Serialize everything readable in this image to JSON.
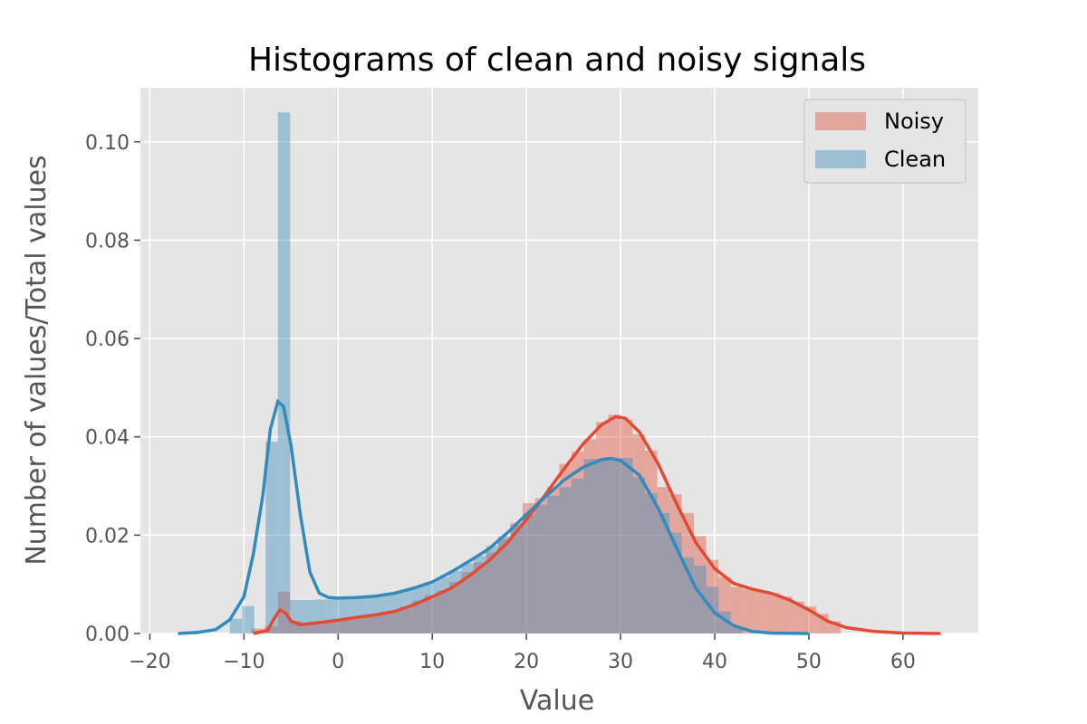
{
  "chart_data": {
    "type": "bar",
    "title": "Histograms of clean and noisy signals",
    "xlabel": "Value",
    "ylabel": "Number of values/Total values",
    "xlim": [
      -21,
      68
    ],
    "ylim": [
      0,
      0.111
    ],
    "x_ticks": [
      -20,
      -10,
      0,
      10,
      20,
      30,
      40,
      50,
      60
    ],
    "x_tick_labels": [
      "−20",
      "−10",
      "0",
      "10",
      "20",
      "30",
      "40",
      "50",
      "60"
    ],
    "y_ticks": [
      0.0,
      0.02,
      0.04,
      0.06,
      0.08,
      0.1
    ],
    "y_tick_labels": [
      "0.00",
      "0.02",
      "0.04",
      "0.06",
      "0.08",
      "0.10"
    ],
    "grid": true,
    "legend_position": "top-right",
    "colors": {
      "background": "#E5E5E5",
      "grid": "#FFFFFF",
      "noisy_fill": "#E24A33",
      "clean_fill": "#348ABD",
      "noisy_line": "#E24A33",
      "clean_line": "#348ABD"
    },
    "series": [
      {
        "name": "Noisy",
        "kind": "histogram",
        "bins": [
          [
            -9.2,
            -7.8,
            0.001
          ],
          [
            -7.8,
            -6.4,
            0.0015
          ],
          [
            -6.4,
            -5.1,
            0.0085
          ],
          [
            -5.1,
            -3.8,
            0.0025
          ],
          [
            -3.8,
            -2.5,
            0.002
          ],
          [
            -2.5,
            -1.2,
            0.0022
          ],
          [
            -1.2,
            0.1,
            0.0025
          ],
          [
            0.1,
            1.4,
            0.0028
          ],
          [
            1.4,
            2.7,
            0.0032
          ],
          [
            2.7,
            4.0,
            0.0036
          ],
          [
            4.0,
            5.3,
            0.004
          ],
          [
            5.3,
            6.6,
            0.0046
          ],
          [
            6.6,
            7.9,
            0.0055
          ],
          [
            7.9,
            9.2,
            0.0067
          ],
          [
            9.2,
            10.5,
            0.0078
          ],
          [
            10.5,
            11.8,
            0.0088
          ],
          [
            11.8,
            13.1,
            0.0105
          ],
          [
            13.1,
            14.4,
            0.0125
          ],
          [
            14.4,
            15.7,
            0.0145
          ],
          [
            15.7,
            17.0,
            0.0165
          ],
          [
            17.0,
            18.3,
            0.0192
          ],
          [
            18.3,
            19.6,
            0.0225
          ],
          [
            19.6,
            20.9,
            0.0265
          ],
          [
            20.9,
            22.2,
            0.0275
          ],
          [
            22.2,
            23.5,
            0.0298
          ],
          [
            23.5,
            24.8,
            0.0345
          ],
          [
            24.8,
            26.1,
            0.037
          ],
          [
            26.1,
            27.4,
            0.0395
          ],
          [
            27.4,
            28.7,
            0.043
          ],
          [
            28.7,
            30.0,
            0.0445
          ],
          [
            30.0,
            31.3,
            0.0435
          ],
          [
            31.3,
            32.6,
            0.0405
          ],
          [
            32.6,
            33.9,
            0.0372
          ],
          [
            33.9,
            35.2,
            0.0298
          ],
          [
            35.2,
            36.5,
            0.0283
          ],
          [
            36.5,
            37.8,
            0.0245
          ],
          [
            37.8,
            39.1,
            0.0198
          ],
          [
            39.1,
            40.4,
            0.015
          ],
          [
            40.4,
            41.7,
            0.0115
          ],
          [
            41.7,
            43.0,
            0.0095
          ],
          [
            43.0,
            44.3,
            0.009
          ],
          [
            44.3,
            45.6,
            0.0085
          ],
          [
            45.6,
            46.9,
            0.0082
          ],
          [
            46.9,
            48.2,
            0.0075
          ],
          [
            48.2,
            49.5,
            0.0065
          ],
          [
            49.5,
            50.8,
            0.0055
          ],
          [
            50.8,
            52.1,
            0.004
          ],
          [
            52.1,
            53.4,
            0.0025
          ]
        ],
        "kde": [
          [
            -9,
            0.0
          ],
          [
            -7.5,
            0.0006
          ],
          [
            -6.8,
            0.003
          ],
          [
            -6.2,
            0.0048
          ],
          [
            -5.6,
            0.0042
          ],
          [
            -5,
            0.0025
          ],
          [
            -4,
            0.0018
          ],
          [
            -2,
            0.0022
          ],
          [
            0,
            0.0027
          ],
          [
            2,
            0.0033
          ],
          [
            4,
            0.0038
          ],
          [
            6,
            0.0045
          ],
          [
            8,
            0.0058
          ],
          [
            10,
            0.0075
          ],
          [
            12,
            0.0092
          ],
          [
            14,
            0.0118
          ],
          [
            16,
            0.0148
          ],
          [
            18,
            0.0185
          ],
          [
            20,
            0.0232
          ],
          [
            22,
            0.0282
          ],
          [
            24,
            0.0335
          ],
          [
            26,
            0.0385
          ],
          [
            28,
            0.0425
          ],
          [
            29.5,
            0.0441
          ],
          [
            30.5,
            0.0438
          ],
          [
            32,
            0.041
          ],
          [
            34,
            0.0345
          ],
          [
            36,
            0.0262
          ],
          [
            38,
            0.0185
          ],
          [
            40,
            0.0132
          ],
          [
            42,
            0.0102
          ],
          [
            44,
            0.009
          ],
          [
            46,
            0.0082
          ],
          [
            48,
            0.0068
          ],
          [
            50,
            0.0048
          ],
          [
            52,
            0.0025
          ],
          [
            54,
            0.0012
          ],
          [
            57,
            0.0004
          ],
          [
            60,
            0.0001
          ],
          [
            64,
            0.0
          ]
        ]
      },
      {
        "name": "Clean",
        "kind": "histogram",
        "bins": [
          [
            -11.5,
            -10.2,
            0.003
          ],
          [
            -10.2,
            -8.9,
            0.0056
          ],
          [
            -7.7,
            -6.4,
            0.039
          ],
          [
            -6.4,
            -5.1,
            0.106
          ],
          [
            -5.1,
            -3.8,
            0.0068
          ],
          [
            -3.8,
            -2.5,
            0.0068
          ],
          [
            -2.5,
            -1.2,
            0.0069
          ],
          [
            -1.2,
            0.1,
            0.0069
          ],
          [
            0.1,
            1.4,
            0.007
          ],
          [
            1.4,
            2.7,
            0.0072
          ],
          [
            2.7,
            4.0,
            0.0074
          ],
          [
            4.0,
            5.3,
            0.0078
          ],
          [
            5.3,
            6.6,
            0.0083
          ],
          [
            6.6,
            7.9,
            0.0089
          ],
          [
            7.9,
            9.2,
            0.0096
          ],
          [
            9.2,
            10.5,
            0.0104
          ],
          [
            10.5,
            11.8,
            0.0115
          ],
          [
            11.8,
            13.1,
            0.0128
          ],
          [
            13.1,
            14.4,
            0.0143
          ],
          [
            14.4,
            15.7,
            0.0158
          ],
          [
            15.7,
            17.0,
            0.0178
          ],
          [
            17.0,
            18.3,
            0.0198
          ],
          [
            18.3,
            19.6,
            0.022
          ],
          [
            19.6,
            20.9,
            0.0242
          ],
          [
            20.9,
            22.2,
            0.0262
          ],
          [
            22.2,
            23.5,
            0.028
          ],
          [
            23.5,
            24.8,
            0.0298
          ],
          [
            24.8,
            26.1,
            0.0315
          ],
          [
            26.1,
            27.4,
            0.0355
          ],
          [
            27.4,
            28.7,
            0.0355
          ],
          [
            28.7,
            30.0,
            0.0355
          ],
          [
            30.0,
            31.3,
            0.0357
          ],
          [
            31.3,
            32.6,
            0.0318
          ],
          [
            32.6,
            33.9,
            0.0285
          ],
          [
            33.9,
            35.2,
            0.0245
          ],
          [
            35.2,
            36.5,
            0.0205
          ],
          [
            36.5,
            37.8,
            0.0155
          ],
          [
            37.8,
            39.1,
            0.0138
          ],
          [
            39.1,
            40.4,
            0.0095
          ],
          [
            40.4,
            41.7,
            0.0045
          ],
          [
            41.7,
            43.0,
            0.0012
          ]
        ],
        "kde": [
          [
            -17,
            0.0
          ],
          [
            -15,
            0.0002
          ],
          [
            -13,
            0.0008
          ],
          [
            -11.5,
            0.0028
          ],
          [
            -10,
            0.0075
          ],
          [
            -9,
            0.0162
          ],
          [
            -8,
            0.028
          ],
          [
            -7.2,
            0.0415
          ],
          [
            -6.4,
            0.0472
          ],
          [
            -5.8,
            0.0462
          ],
          [
            -5,
            0.0382
          ],
          [
            -4,
            0.024
          ],
          [
            -3,
            0.0125
          ],
          [
            -2,
            0.0082
          ],
          [
            -1,
            0.0073
          ],
          [
            0,
            0.0072
          ],
          [
            2,
            0.0073
          ],
          [
            4,
            0.0076
          ],
          [
            6,
            0.0082
          ],
          [
            8,
            0.0092
          ],
          [
            10,
            0.0105
          ],
          [
            12,
            0.0125
          ],
          [
            14,
            0.0148
          ],
          [
            16,
            0.0172
          ],
          [
            18,
            0.0205
          ],
          [
            20,
            0.0242
          ],
          [
            22,
            0.0278
          ],
          [
            24,
            0.0312
          ],
          [
            26,
            0.0338
          ],
          [
            28,
            0.0354
          ],
          [
            29,
            0.0356
          ],
          [
            30,
            0.0352
          ],
          [
            32,
            0.0322
          ],
          [
            34,
            0.0255
          ],
          [
            36,
            0.0172
          ],
          [
            38,
            0.0092
          ],
          [
            40,
            0.0042
          ],
          [
            42,
            0.0016
          ],
          [
            44,
            0.0004
          ],
          [
            46,
            0.0001
          ],
          [
            50,
            0.0
          ]
        ]
      }
    ]
  }
}
